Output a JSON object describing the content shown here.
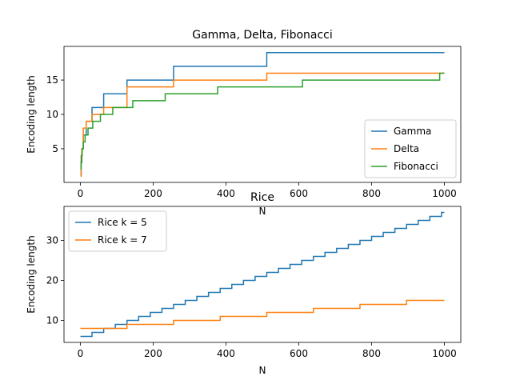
{
  "chart_data": [
    {
      "type": "line",
      "title": "Gamma, Delta, Fibonacci",
      "xlabel": "N",
      "ylabel": "Encoding length",
      "xlim": [
        -45,
        1045
      ],
      "ylim": [
        0.1,
        19.9
      ],
      "xticks": [
        0,
        200,
        400,
        600,
        800,
        1000
      ],
      "yticks": [
        5,
        10,
        15
      ],
      "grid": false,
      "legend_position": "lower-right",
      "series": [
        {
          "name": "Gamma",
          "color": "#1f77b4",
          "steps": [
            [
              1,
              1
            ],
            [
              2,
              3
            ],
            [
              4,
              5
            ],
            [
              8,
              7
            ],
            [
              16,
              9
            ],
            [
              32,
              11
            ],
            [
              64,
              13
            ],
            [
              128,
              15
            ],
            [
              256,
              17
            ],
            [
              512,
              19
            ],
            [
              1000,
              19
            ]
          ]
        },
        {
          "name": "Delta",
          "color": "#ff7f0e",
          "steps": [
            [
              1,
              1
            ],
            [
              2,
              4
            ],
            [
              4,
              5
            ],
            [
              8,
              8
            ],
            [
              16,
              9
            ],
            [
              32,
              10
            ],
            [
              64,
              11
            ],
            [
              128,
              14
            ],
            [
              256,
              15
            ],
            [
              512,
              16
            ],
            [
              1000,
              16
            ]
          ]
        },
        {
          "name": "Fibonacci",
          "color": "#2ca02c",
          "steps": [
            [
              1,
              2
            ],
            [
              2,
              3
            ],
            [
              3,
              4
            ],
            [
              5,
              5
            ],
            [
              8,
              6
            ],
            [
              13,
              7
            ],
            [
              21,
              8
            ],
            [
              34,
              9
            ],
            [
              55,
              10
            ],
            [
              89,
              11
            ],
            [
              144,
              12
            ],
            [
              233,
              13
            ],
            [
              377,
              14
            ],
            [
              610,
              15
            ],
            [
              987,
              16
            ],
            [
              1000,
              16
            ]
          ]
        }
      ]
    },
    {
      "type": "line",
      "title": "Rice",
      "xlabel": "N",
      "ylabel": "Encoding length",
      "xlim": [
        -45,
        1045
      ],
      "ylim": [
        4.5,
        38.5
      ],
      "xticks": [
        0,
        200,
        400,
        600,
        800,
        1000
      ],
      "yticks": [
        10,
        20,
        30
      ],
      "grid": false,
      "legend_position": "upper-left",
      "series": [
        {
          "name": "Rice k = 5",
          "color": "#1f77b4",
          "step_width": 32,
          "start_value": 6
        },
        {
          "name": "Rice k = 7",
          "color": "#ff7f0e",
          "step_width": 128,
          "start_value": 8
        }
      ]
    }
  ]
}
